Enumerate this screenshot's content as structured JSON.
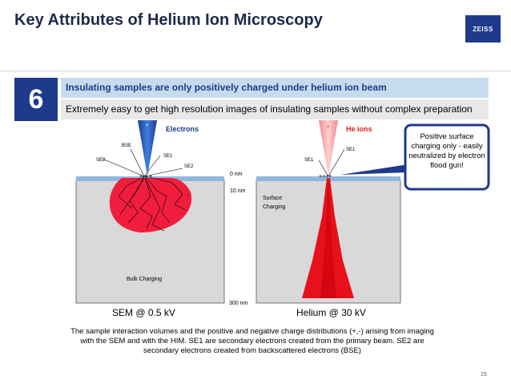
{
  "title": "Key Attributes of Helium Ion Microscopy",
  "logo_text": "ZEISS",
  "number": "6",
  "headline": "Insulating samples are only positively charged under helium ion beam",
  "subline": "Extremely easy to get high resolution images of insulating samples without complex preparation",
  "sem": {
    "beam_label": "Electrons",
    "bse": "BSE",
    "se1": "SE1",
    "se2_left": "SE2",
    "se2_right": "SE2",
    "bulk": "Bulk Charging",
    "caption": "SEM @ 0.5 kV",
    "charge_plus": "+",
    "charge_surface": "+ + +",
    "charge_minus": "-"
  },
  "him": {
    "beam_label": "He ions",
    "se1_left": "SE1",
    "se1_right": "SE1",
    "surface": "Surface",
    "charging": "Charging",
    "caption": "Helium @ 30 kV",
    "charge_plus": "+",
    "charge_surface": "++++"
  },
  "scale": {
    "top": "0 nm",
    "mid": "10 nm",
    "bottom": "300 nm"
  },
  "callout": "Positive surface charging only - easily neutralized by electron flood gun!",
  "description": "The sample interaction volumes and the positive and negative charge distributions (+,-) arising from imaging with the SEM and with the HIM. SE1 are secondary electrons created from the primary beam. SE2 are secondary electrons created from backscattered electrons (BSE)",
  "page_number": "15",
  "colors": {
    "title": "#1c2a4a",
    "brand": "#1e3a8a",
    "beam_label": "#1e3a8a",
    "he_label": "#e01b1b",
    "sem_volume": "#f01e3c",
    "him_volume": "#e8101a",
    "substrate": "#d9d9d9",
    "surface_layer": "#8fb8e0"
  }
}
